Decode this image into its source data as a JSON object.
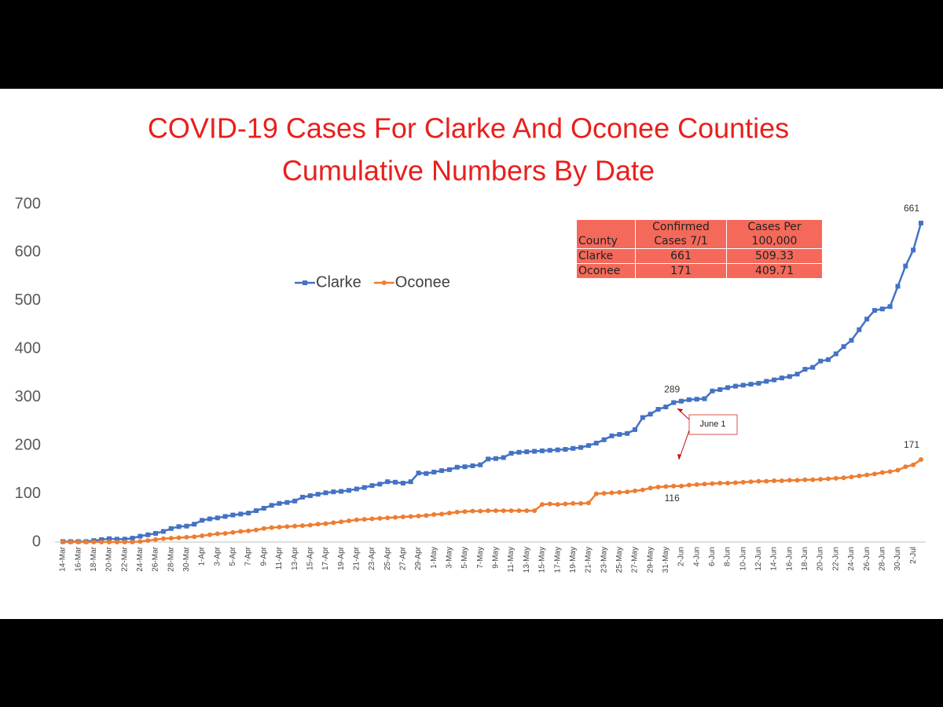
{
  "chart_data": {
    "type": "line",
    "title": "COVID-19 Cases For Clarke And Oconee Counties",
    "subtitle": "Cumulative Numbers By Date",
    "categories": [
      "14-Mar",
      null,
      "16-Mar",
      null,
      "18-Mar",
      null,
      "20-Mar",
      null,
      "22-Mar",
      null,
      "24-Mar",
      null,
      "26-Mar",
      null,
      "28-Mar",
      null,
      "30-Mar",
      null,
      "1-Apr",
      null,
      "3-Apr",
      null,
      "5-Apr",
      null,
      "7-Apr",
      null,
      "9-Apr",
      null,
      "11-Apr",
      null,
      "13-Apr",
      null,
      "15-Apr",
      null,
      "17-Apr",
      null,
      "19-Apr",
      null,
      "21-Apr",
      null,
      "23-Apr",
      null,
      "25-Apr",
      null,
      "27-Apr",
      null,
      "29-Apr",
      null,
      "1-May",
      null,
      "3-May",
      null,
      "5-May",
      null,
      "7-May",
      null,
      "9-May",
      null,
      "11-May",
      null,
      "13-May",
      null,
      "15-May",
      null,
      "17-May",
      null,
      "19-May",
      null,
      "21-May",
      null,
      "23-May",
      null,
      "25-May",
      null,
      "27-May",
      null,
      "29-May",
      null,
      "31-May",
      null,
      "2-Jun",
      null,
      "4-Jun",
      null,
      "6-Jun",
      null,
      "8-Jun",
      null,
      "10-Jun",
      null,
      "12-Jun",
      null,
      "14-Jun",
      null,
      "16-Jun",
      null,
      "18-Jun",
      null,
      "20-Jun",
      null,
      "22-Jun",
      null,
      "24-Jun",
      null,
      "26-Jun",
      null,
      "28-Jun",
      null,
      "30-Jun",
      null,
      "2-Jul",
      null
    ],
    "series": [
      {
        "name": "Clarke",
        "color": "#4472c4",
        "marker": "square",
        "values": [
          1,
          1,
          1,
          1,
          3,
          5,
          7,
          6,
          6,
          8,
          12,
          15,
          18,
          22,
          28,
          32,
          33,
          37,
          45,
          48,
          50,
          53,
          56,
          58,
          60,
          65,
          70,
          76,
          80,
          82,
          85,
          93,
          96,
          99,
          102,
          104,
          105,
          107,
          110,
          113,
          117,
          120,
          125,
          124,
          122,
          125,
          143,
          142,
          145,
          148,
          150,
          155,
          156,
          158,
          160,
          172,
          173,
          175,
          184,
          186,
          187,
          188,
          189,
          190,
          191,
          192,
          194,
          196,
          200,
          205,
          212,
          220,
          223,
          225,
          233,
          258,
          265,
          275,
          280,
          289,
          292,
          295,
          296,
          297,
          313,
          316,
          320,
          323,
          325,
          327,
          329,
          333,
          336,
          340,
          343,
          348,
          358,
          362,
          375,
          378,
          390,
          405,
          418,
          440,
          462,
          480,
          483,
          488,
          530,
          572,
          605,
          661
        ]
      },
      {
        "name": "Oconee",
        "color": "#ed7d31",
        "marker": "circle",
        "values": [
          0,
          0,
          0,
          0,
          0,
          0,
          0,
          0,
          0,
          0,
          1,
          3,
          5,
          7,
          8,
          9,
          10,
          11,
          13,
          15,
          17,
          18,
          20,
          22,
          23,
          25,
          28,
          30,
          31,
          32,
          33,
          34,
          35,
          37,
          38,
          40,
          42,
          44,
          46,
          47,
          48,
          49,
          50,
          51,
          52,
          53,
          54,
          55,
          57,
          58,
          60,
          62,
          63,
          64,
          64,
          65,
          65,
          65,
          65,
          65,
          65,
          65,
          78,
          79,
          78,
          79,
          80,
          80,
          81,
          100,
          101,
          102,
          103,
          104,
          106,
          108,
          112,
          114,
          115,
          116,
          116,
          118,
          119,
          120,
          121,
          122,
          122,
          123,
          124,
          125,
          126,
          126,
          127,
          127,
          128,
          128,
          129,
          129,
          130,
          131,
          132,
          133,
          135,
          137,
          139,
          141,
          144,
          146,
          149,
          156,
          160,
          171
        ]
      }
    ],
    "ylim": [
      0,
      700
    ],
    "yticks": [
      0,
      100,
      200,
      300,
      400,
      500,
      600,
      700
    ],
    "grid": false,
    "annotations": [
      {
        "text": "June 1"
      }
    ]
  },
  "table": {
    "header": [
      "County",
      "Confirmed Cases 7/1",
      "Cases Per 100,000"
    ],
    "rows": [
      [
        "Clarke",
        661,
        509.33
      ],
      [
        "Oconee",
        171,
        409.71
      ]
    ]
  }
}
